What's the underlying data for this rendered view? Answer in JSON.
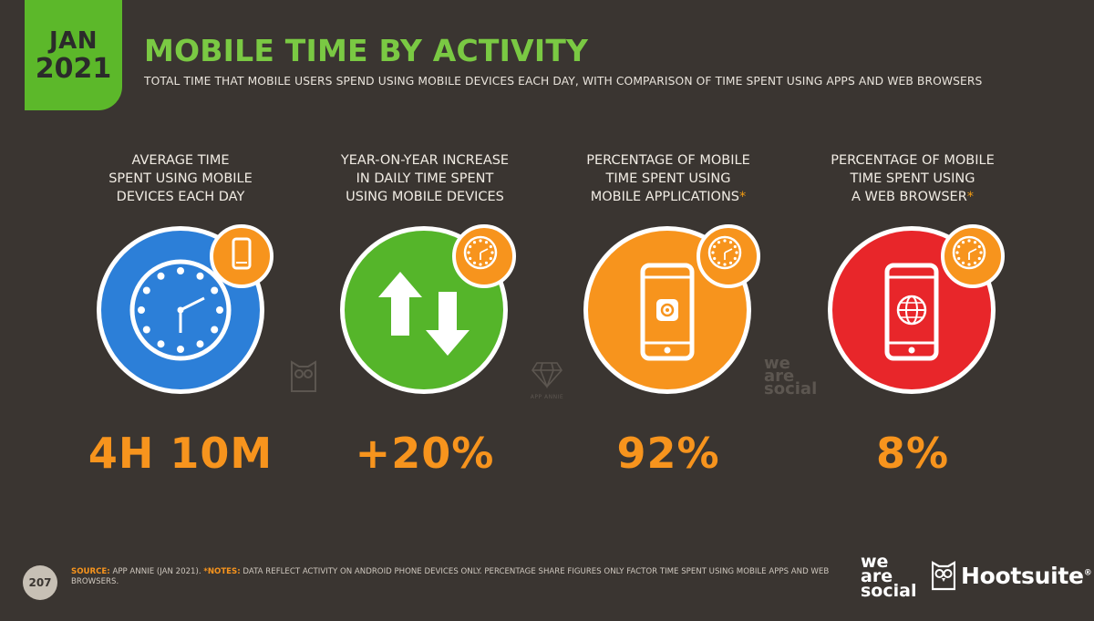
{
  "header": {
    "month": "JAN",
    "year": "2021",
    "title": "MOBILE TIME BY ACTIVITY",
    "subtitle": "TOTAL TIME THAT MOBILE USERS SPEND USING MOBILE DEVICES EACH DAY, WITH COMPARISON OF TIME SPENT USING APPS AND WEB BROWSERS"
  },
  "stats": [
    {
      "label_lines": [
        "AVERAGE TIME",
        "SPENT USING MOBILE",
        "DEVICES EACH DAY"
      ],
      "asterisk": "",
      "value": "4H 10M",
      "color": "#2c7fd8",
      "icon": "clock-icon",
      "badge_icon": "mobile-phone-icon"
    },
    {
      "label_lines": [
        "YEAR-ON-YEAR INCREASE",
        "IN DAILY TIME SPENT",
        "USING MOBILE DEVICES"
      ],
      "asterisk": "",
      "value": "+20%",
      "color": "#55b52a",
      "icon": "up-down-arrows-icon",
      "badge_icon": "clock-icon"
    },
    {
      "label_lines": [
        "PERCENTAGE OF MOBILE",
        "TIME SPENT USING",
        "MOBILE APPLICATIONS"
      ],
      "asterisk": "*",
      "value": "92%",
      "color": "#f7941d",
      "icon": "phone-app-icon",
      "badge_icon": "clock-icon"
    },
    {
      "label_lines": [
        "PERCENTAGE OF MOBILE",
        "TIME SPENT USING",
        "A WEB BROWSER"
      ],
      "asterisk": "*",
      "value": "8%",
      "color": "#e8262a",
      "icon": "phone-browser-icon",
      "badge_icon": "clock-icon"
    }
  ],
  "watermarks": {
    "app_annie": "APP ANNIE",
    "we_are_social_lines": [
      "we",
      "are",
      "social"
    ]
  },
  "footer": {
    "page_number": "207",
    "source_label": "SOURCE:",
    "source_text": " APP ANNIE (JAN 2021). ",
    "notes_label": "*NOTES:",
    "notes_text": " DATA REFLECT ACTIVITY ON ANDROID PHONE DEVICES ONLY. PERCENTAGE SHARE FIGURES ONLY FACTOR TIME SPENT USING MOBILE APPS AND WEB BROWSERS.",
    "logo_was_lines": [
      "we",
      "are",
      "social"
    ],
    "logo_hootsuite": "Hootsuite",
    "logo_hootsuite_reg": "®"
  },
  "colors": {
    "background": "#3a3531",
    "accent_green": "#5cb82a",
    "accent_orange": "#f7941d",
    "blue": "#2c7fd8",
    "red": "#e8262a"
  }
}
